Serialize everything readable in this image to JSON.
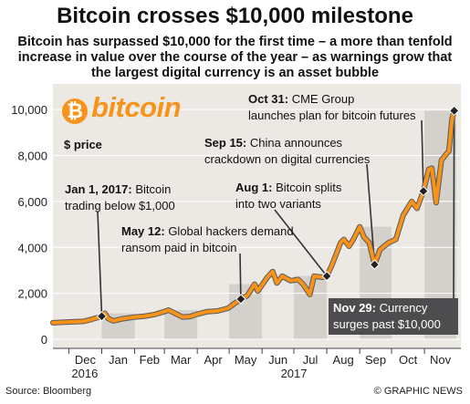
{
  "header": {
    "title": "Bitcoin crosses $10,000 milestone",
    "subtitle": "Bitcoin has surpassed $10,000 for the first time – a more than tenfold increase in value over the course of the year – as warnings grow that the largest digital currency is an asset bubble"
  },
  "logo": {
    "symbol": "₿",
    "word": "bitcoin"
  },
  "footer": {
    "source": "Source: Bloomberg",
    "credit": "© GRAPHIC NEWS"
  },
  "colors": {
    "line": "#f7931a",
    "line_outline": "#5a5a5a",
    "plot_bg": "#ece9e5",
    "band": "#d4d0cb",
    "highlight_box": "#4d4d4f",
    "marker": "#222222"
  },
  "chart_data": {
    "type": "line",
    "ylabel": "$ price",
    "ylim": [
      0,
      11000
    ],
    "yticks": [
      0,
      2000,
      4000,
      6000,
      8000,
      10000
    ],
    "ytick_labels": [
      "0",
      "2,000",
      "4,000",
      "6,000",
      "8,000",
      "10,000"
    ],
    "xlim": [
      "2016-11-16",
      "2017-12-01"
    ],
    "month_ticks": [
      {
        "label": "Dec",
        "start": "2016-12-01",
        "end": "2017-01-01",
        "band": false
      },
      {
        "label": "Jan",
        "start": "2017-01-01",
        "end": "2017-02-01",
        "band": true
      },
      {
        "label": "Feb",
        "start": "2017-02-01",
        "end": "2017-03-01",
        "band": false
      },
      {
        "label": "Mar",
        "start": "2017-03-01",
        "end": "2017-04-01",
        "band": true
      },
      {
        "label": "Apr",
        "start": "2017-04-01",
        "end": "2017-05-01",
        "band": false
      },
      {
        "label": "May",
        "start": "2017-05-01",
        "end": "2017-06-01",
        "band": true
      },
      {
        "label": "Jun",
        "start": "2017-06-01",
        "end": "2017-07-01",
        "band": false
      },
      {
        "label": "Jul",
        "start": "2017-07-01",
        "end": "2017-08-01",
        "band": true
      },
      {
        "label": "Aug",
        "start": "2017-08-01",
        "end": "2017-09-01",
        "band": false
      },
      {
        "label": "Sep",
        "start": "2017-09-01",
        "end": "2017-10-01",
        "band": true
      },
      {
        "label": "Oct",
        "start": "2017-10-01",
        "end": "2017-11-01",
        "band": false
      },
      {
        "label": "Nov",
        "start": "2017-11-01",
        "end": "2017-12-01",
        "band": true
      }
    ],
    "year_labels": [
      {
        "label": "2016",
        "date": "2016-12-16"
      },
      {
        "label": "2017",
        "date": "2017-07-01"
      }
    ],
    "series": [
      {
        "points": [
          [
            "2016-11-16",
            720
          ],
          [
            "2016-11-25",
            740
          ],
          [
            "2016-12-05",
            760
          ],
          [
            "2016-12-15",
            780
          ],
          [
            "2016-12-22",
            860
          ],
          [
            "2016-12-28",
            940
          ],
          [
            "2017-01-01",
            1000
          ],
          [
            "2017-01-04",
            1130
          ],
          [
            "2017-01-07",
            900
          ],
          [
            "2017-01-12",
            800
          ],
          [
            "2017-01-20",
            890
          ],
          [
            "2017-01-31",
            960
          ],
          [
            "2017-02-10",
            1000
          ],
          [
            "2017-02-20",
            1080
          ],
          [
            "2017-02-28",
            1190
          ],
          [
            "2017-03-05",
            1270
          ],
          [
            "2017-03-10",
            1150
          ],
          [
            "2017-03-18",
            970
          ],
          [
            "2017-03-25",
            990
          ],
          [
            "2017-03-31",
            1080
          ],
          [
            "2017-04-10",
            1200
          ],
          [
            "2017-04-20",
            1230
          ],
          [
            "2017-04-30",
            1350
          ],
          [
            "2017-05-05",
            1520
          ],
          [
            "2017-05-12",
            1750
          ],
          [
            "2017-05-18",
            1900
          ],
          [
            "2017-05-25",
            2400
          ],
          [
            "2017-05-28",
            2100
          ],
          [
            "2017-06-06",
            2700
          ],
          [
            "2017-06-11",
            2950
          ],
          [
            "2017-06-15",
            2450
          ],
          [
            "2017-06-20",
            2750
          ],
          [
            "2017-06-28",
            2550
          ],
          [
            "2017-07-05",
            2600
          ],
          [
            "2017-07-10",
            2380
          ],
          [
            "2017-07-16",
            1950
          ],
          [
            "2017-07-20",
            2750
          ],
          [
            "2017-07-28",
            2700
          ],
          [
            "2017-08-01",
            2750
          ],
          [
            "2017-08-06",
            3250
          ],
          [
            "2017-08-14",
            4200
          ],
          [
            "2017-08-17",
            4350
          ],
          [
            "2017-08-22",
            4050
          ],
          [
            "2017-08-26",
            4350
          ],
          [
            "2017-09-01",
            4900
          ],
          [
            "2017-09-05",
            4450
          ],
          [
            "2017-09-10",
            4200
          ],
          [
            "2017-09-15",
            3250
          ],
          [
            "2017-09-20",
            3900
          ],
          [
            "2017-09-28",
            4200
          ],
          [
            "2017-10-05",
            4350
          ],
          [
            "2017-10-12",
            5400
          ],
          [
            "2017-10-20",
            6000
          ],
          [
            "2017-10-25",
            5700
          ],
          [
            "2017-10-31",
            6450
          ],
          [
            "2017-11-05",
            7400
          ],
          [
            "2017-11-08",
            7450
          ],
          [
            "2017-11-12",
            5950
          ],
          [
            "2017-11-17",
            7800
          ],
          [
            "2017-11-24",
            8200
          ],
          [
            "2017-11-27",
            9600
          ],
          [
            "2017-11-29",
            9950
          ]
        ]
      }
    ],
    "markers": [
      {
        "date": "2017-01-01",
        "value": 1000
      },
      {
        "date": "2017-05-12",
        "value": 1750
      },
      {
        "date": "2017-08-01",
        "value": 2750
      },
      {
        "date": "2017-09-15",
        "value": 3250
      },
      {
        "date": "2017-10-31",
        "value": 6450
      },
      {
        "date": "2017-11-29",
        "value": 9950
      }
    ],
    "annotations": [
      {
        "bold": "Jan 1, 2017:",
        "text": " Bitcoin",
        "line2": "trading below $1,000",
        "highlight": false
      },
      {
        "bold": "May 12:",
        "text": " Global hackers demand",
        "line2": "ransom paid in bitcoin",
        "highlight": false
      },
      {
        "bold": "Aug 1:",
        "text": " Bitcoin splits",
        "line2": "into two variants",
        "highlight": false
      },
      {
        "bold": "Sep 15:",
        "text": " China announces",
        "line2": "crackdown on digital currencies",
        "highlight": false
      },
      {
        "bold": "Oct 31:",
        "text": " CME Group",
        "line2": "launches plan for bitcoin futures",
        "highlight": false
      },
      {
        "bold": "Nov 29:",
        "text": " Currency",
        "line2": "surges past $10,000",
        "highlight": true
      }
    ]
  }
}
